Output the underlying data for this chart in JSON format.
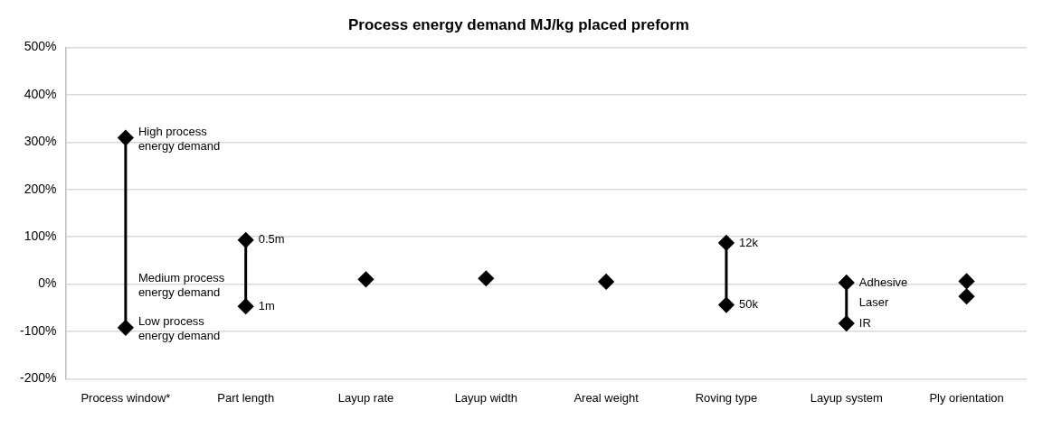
{
  "chart_data": {
    "type": "line",
    "title": "Process energy demand MJ/kg placed preform",
    "categories": [
      "Process window*",
      "Part length",
      "Layup rate",
      "Layup width",
      "Areal weight",
      "Roving type",
      "Layup system",
      "Ply orientation"
    ],
    "series": [
      {
        "color": "#000000",
        "x": [
          "Process window*",
          "Process window*"
        ],
        "values": [
          309,
          -92
        ]
      },
      {
        "color": "#000000",
        "x": [
          "Part length",
          "Part length"
        ],
        "values": [
          93,
          -47
        ]
      },
      {
        "color": "#000000",
        "x": [
          "Layup rate"
        ],
        "values": [
          10
        ]
      },
      {
        "color": "#000000",
        "x": [
          "Layup width"
        ],
        "values": [
          12
        ]
      },
      {
        "color": "#000000",
        "x": [
          "Areal weight"
        ],
        "values": [
          5
        ]
      },
      {
        "color": "#000000",
        "x": [
          "Roving type",
          "Roving type"
        ],
        "values": [
          87,
          -44
        ]
      },
      {
        "color": "#000000",
        "x": [
          "Layup system",
          "Layup system"
        ],
        "values": [
          3,
          -83
        ]
      },
      {
        "type": "scatter",
        "color": "#000000",
        "x": [
          "Ply orientation",
          "Ply orientation"
        ],
        "values": [
          6,
          -26
        ]
      }
    ],
    "ylim": [
      -200,
      500
    ],
    "yticks": [
      {
        "value": -200,
        "label": "-200%"
      },
      {
        "value": -100,
        "label": "-100%"
      },
      {
        "value": 0,
        "label": "0%"
      },
      {
        "value": 100,
        "label": "100%"
      },
      {
        "value": 200,
        "label": "200%"
      },
      {
        "value": 300,
        "label": "300%"
      },
      {
        "value": 400,
        "label": "400%"
      },
      {
        "value": 500,
        "label": "500%"
      }
    ],
    "annotations": [
      {
        "text": "High process energy demand",
        "x": "Process window*",
        "y": 309
      },
      {
        "text": "Medium process energy demand",
        "x": "Process window*",
        "y": 0
      },
      {
        "text": "Low process energy demand",
        "x": "Process window*",
        "y": -92
      },
      {
        "text": "0.5m",
        "x": "Part length",
        "y": 93
      },
      {
        "text": "1m",
        "x": "Part length",
        "y": -47
      },
      {
        "text": "12k",
        "x": "Roving type",
        "y": 87
      },
      {
        "text": "50k",
        "x": "Roving type",
        "y": -44
      },
      {
        "text": "Adhesive",
        "x": "Layup system",
        "y": 3
      },
      {
        "text": "Laser",
        "x": "Layup system",
        "y": -40
      },
      {
        "text": "IR",
        "x": "Layup system",
        "y": -83
      }
    ],
    "grid": "y",
    "legend": false,
    "marker": "diamond",
    "line_style": "solid"
  }
}
